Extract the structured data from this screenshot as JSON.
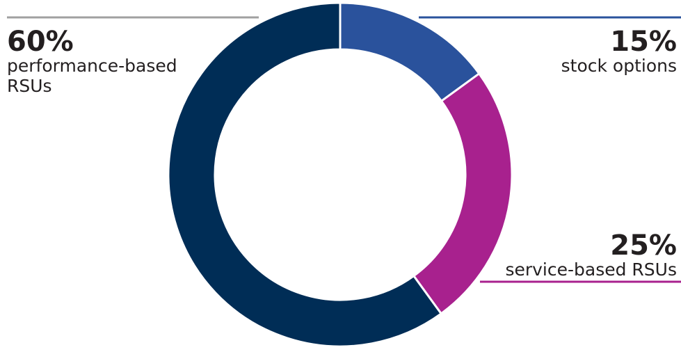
{
  "chart_data": {
    "type": "pie",
    "donut": true,
    "slices": [
      {
        "label": "stock options",
        "value": 15,
        "value_label": "15%",
        "color": "#2a529c"
      },
      {
        "label": "service-based RSUs",
        "value": 25,
        "value_label": "25%",
        "color": "#a8218e"
      },
      {
        "label": "performance-based RSUs",
        "value": 60,
        "value_label": "60%",
        "color": "#002d56"
      }
    ],
    "start": "top",
    "direction": "clockwise",
    "leader_line_colors": {
      "performance": "#a0a0a0",
      "stock": "#2a529c",
      "service": "#a8218e"
    }
  }
}
